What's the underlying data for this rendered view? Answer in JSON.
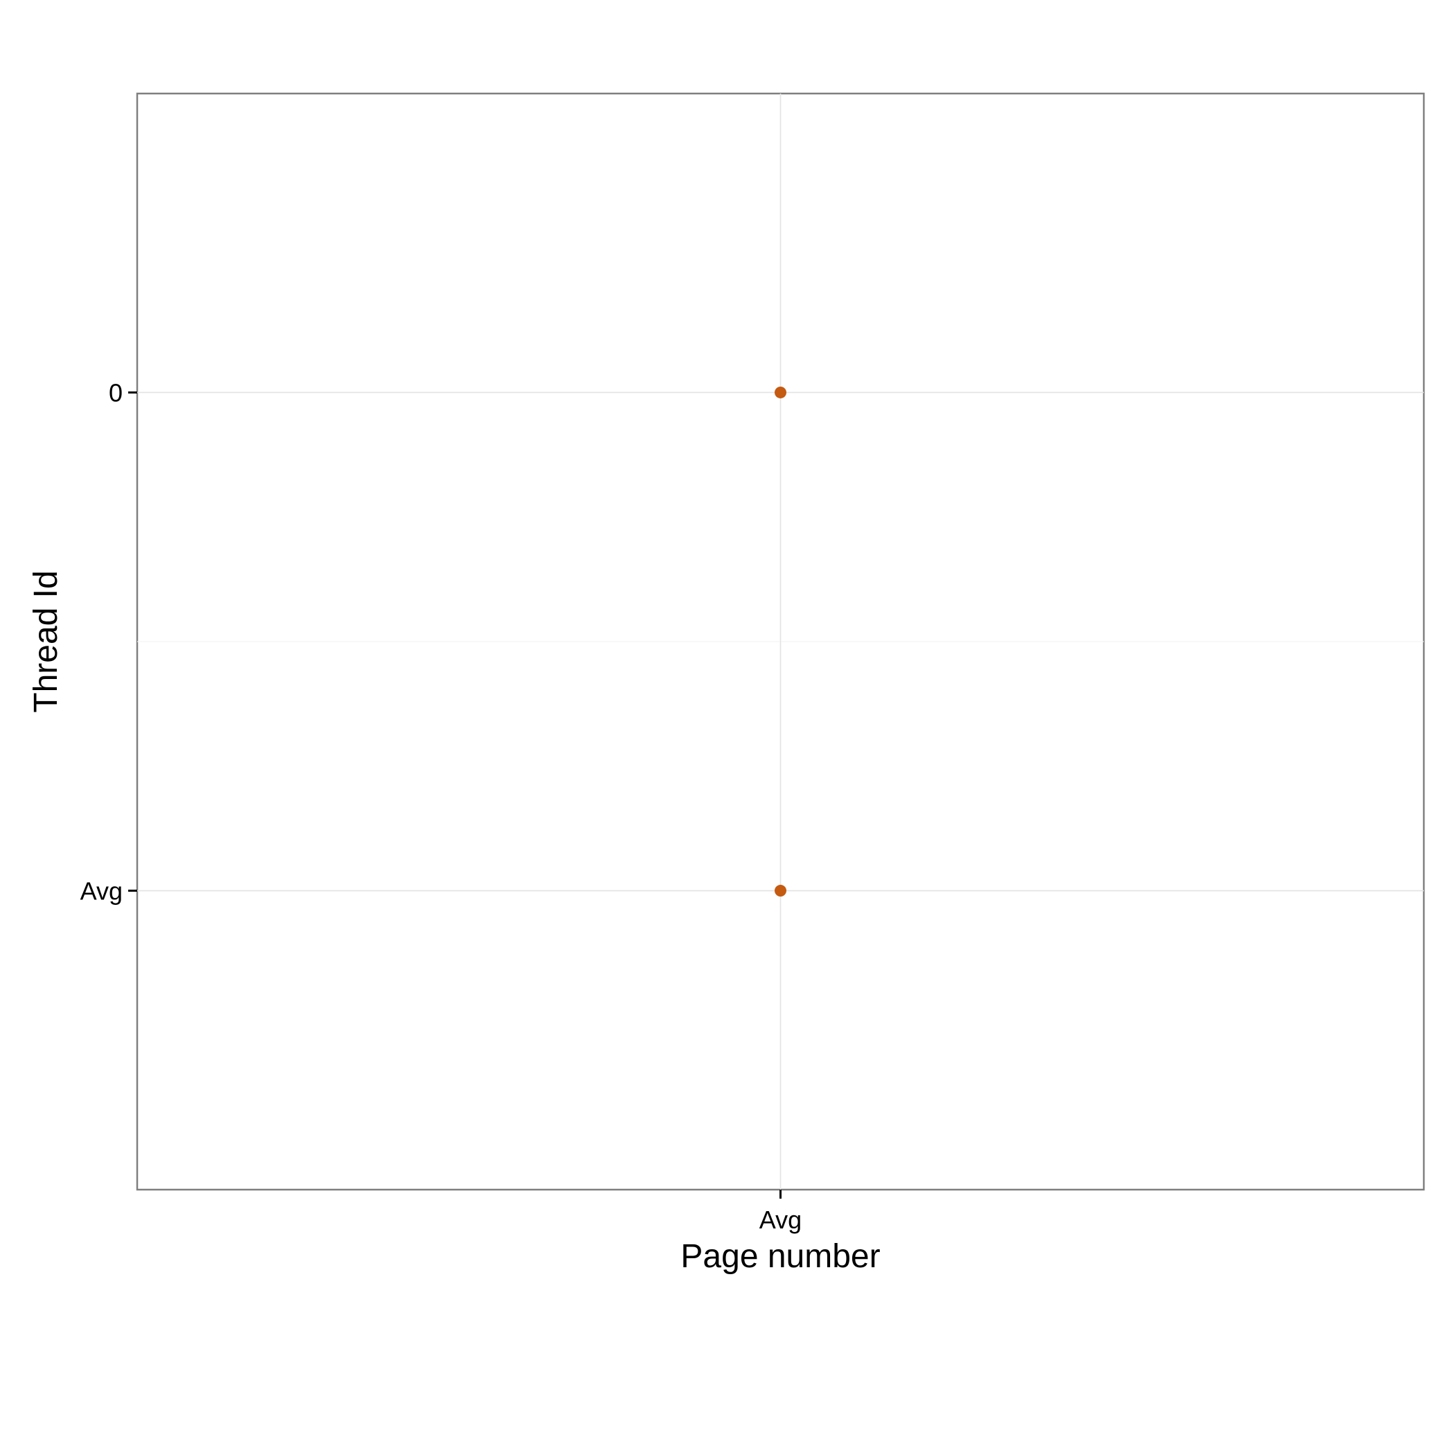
{
  "chart_data": {
    "type": "scatter",
    "xlabel": "Page number",
    "ylabel": "Thread Id",
    "x_categories": [
      "Avg"
    ],
    "y_categories": [
      "Avg",
      "0"
    ],
    "points": [
      {
        "x": "Avg",
        "y": "0"
      },
      {
        "x": "Avg",
        "y": "Avg"
      }
    ],
    "point_color": "#c55a11",
    "grid": true,
    "legend": "none"
  }
}
